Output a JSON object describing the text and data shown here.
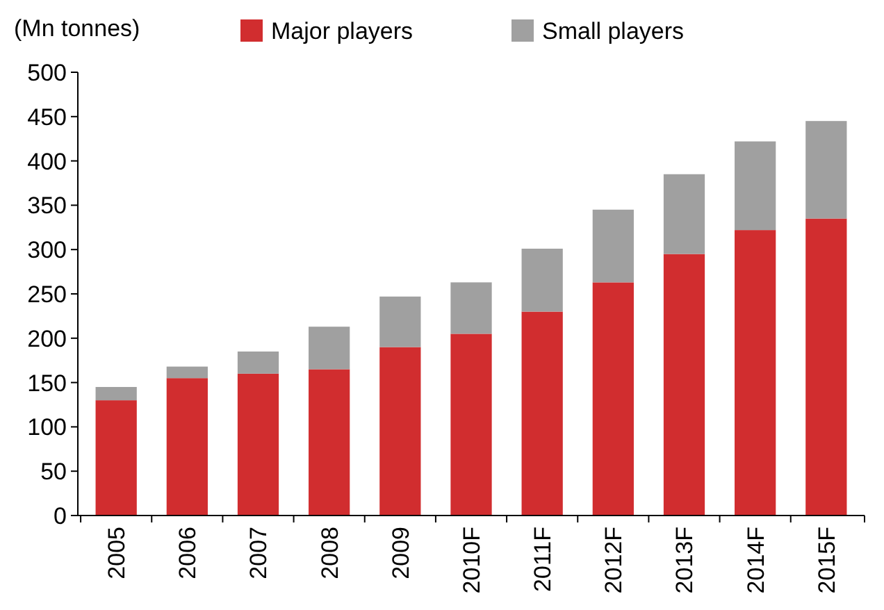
{
  "chart_data": {
    "type": "bar",
    "ylabel": "(Mn tonnes)",
    "stacked": true,
    "legend": "top",
    "grid": false,
    "categories": [
      "2005",
      "2006",
      "2007",
      "2008",
      "2009",
      "2010F",
      "2011F",
      "2012F",
      "2013F",
      "2014F",
      "2015F"
    ],
    "series": [
      {
        "name": "Major players",
        "color": "#d12d2f",
        "values": [
          130,
          155,
          160,
          165,
          190,
          205,
          230,
          263,
          295,
          322,
          335
        ]
      },
      {
        "name": "Small players",
        "color": "#a0a0a0",
        "values": [
          15,
          13,
          25,
          48,
          57,
          58,
          71,
          82,
          90,
          100,
          110
        ]
      }
    ],
    "ylim": [
      0,
      500
    ],
    "yticks": [
      0,
      50,
      100,
      150,
      200,
      250,
      300,
      350,
      400,
      450,
      500
    ]
  }
}
